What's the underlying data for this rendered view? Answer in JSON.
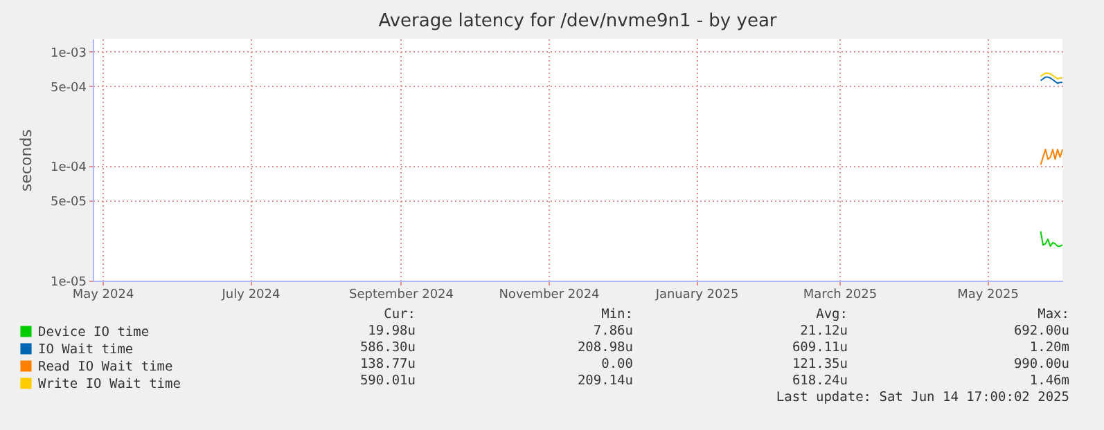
{
  "chart_data": {
    "type": "line",
    "title": "Average latency for /dev/nvme9n1 - by year",
    "ylabel": "seconds",
    "log": "y",
    "grid": true,
    "legend": "bottom",
    "xlim": [
      "2024-04-27",
      "2025-06-01"
    ],
    "xticks": [
      {
        "value": "2024-05-01",
        "label": "May 2024"
      },
      {
        "value": "2024-07-01",
        "label": "July 2024"
      },
      {
        "value": "2024-09-01",
        "label": "September 2024"
      },
      {
        "value": "2024-11-01",
        "label": "November 2024"
      },
      {
        "value": "2025-01-01",
        "label": "January 2025"
      },
      {
        "value": "2025-03-01",
        "label": "March 2025"
      },
      {
        "value": "2025-05-01",
        "label": "May 2025"
      }
    ],
    "ylim": [
      1e-05,
      0.0013
    ],
    "yticks": [
      {
        "value": 1e-05,
        "label": "1e-05"
      },
      {
        "value": 5e-05,
        "label": "5e-05"
      },
      {
        "value": 0.0001,
        "label": "1e-04"
      },
      {
        "value": 0.0005,
        "label": "5e-04"
      },
      {
        "value": 0.001,
        "label": "1e-03"
      }
    ],
    "x": [
      "2025-05-23",
      "2025-05-24",
      "2025-05-25",
      "2025-05-26",
      "2025-05-27",
      "2025-05-28",
      "2025-05-29",
      "2025-05-30",
      "2025-05-31",
      "2025-06-01"
    ],
    "series": [
      {
        "name": "Device IO time",
        "color": "#00cc00",
        "values": [
          2.7e-05,
          2.05e-05,
          2.1e-05,
          2.3e-05,
          2e-05,
          2.15e-05,
          2.1e-05,
          2e-05,
          2e-05,
          2.05e-05
        ]
      },
      {
        "name": "IO Wait time",
        "color": "#0066b3",
        "values": [
          0.00056,
          0.00058,
          0.0006,
          0.0006,
          0.00059,
          0.00057,
          0.00055,
          0.00053,
          0.00054,
          0.00054
        ]
      },
      {
        "name": "Read IO Wait time",
        "color": "#ff8000",
        "values": [
          0.000103,
          0.00012,
          0.00014,
          0.000115,
          0.00012,
          0.00014,
          0.000115,
          0.00014,
          0.00012,
          0.00014
        ]
      },
      {
        "name": "Write IO Wait time",
        "color": "#ffcc00",
        "values": [
          0.00061,
          0.00063,
          0.00065,
          0.00065,
          0.00064,
          0.00062,
          0.0006,
          0.00058,
          0.00059,
          0.00059
        ]
      }
    ],
    "annotations": [
      "Cur:",
      "Min:",
      "Avg:",
      "Max:",
      "19.98u",
      "7.86u",
      "21.12u",
      "692.00u",
      "586.30u",
      "208.98u",
      "609.11u",
      "1.20m",
      "138.77u",
      "0.00",
      "121.35u",
      "990.00u",
      "590.01u",
      "209.14u",
      "618.24u",
      "1.46m",
      "Last update: Sat Jun 14 17:00:02 2025"
    ]
  }
}
